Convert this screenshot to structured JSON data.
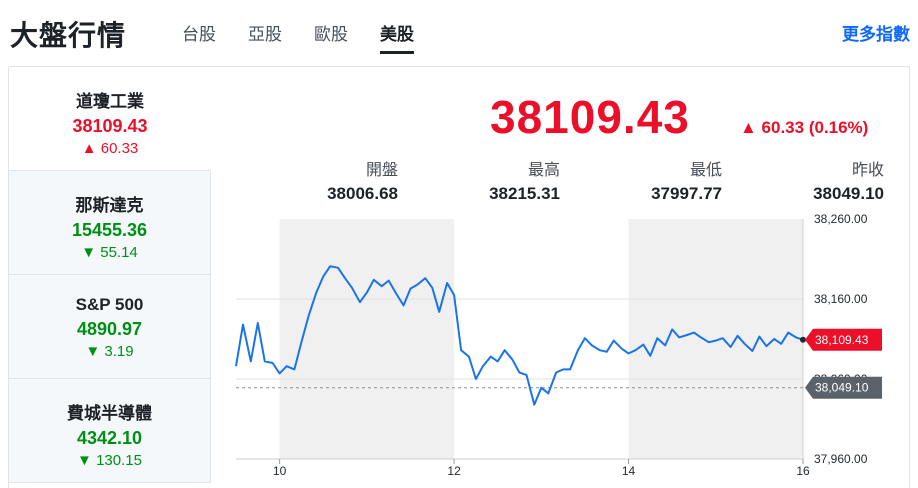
{
  "header": {
    "title": "大盤行情",
    "tabs": [
      {
        "label": "台股",
        "active": false
      },
      {
        "label": "亞股",
        "active": false
      },
      {
        "label": "歐股",
        "active": false
      },
      {
        "label": "美股",
        "active": true
      }
    ],
    "more_link": "更多指數"
  },
  "indices": [
    {
      "name": "道瓊工業",
      "price": "38109.43",
      "change": "60.33",
      "direction": "up"
    },
    {
      "name": "那斯達克",
      "price": "15455.36",
      "change": "55.14",
      "direction": "down"
    },
    {
      "name": "S&P 500",
      "price": "4890.97",
      "change": "3.19",
      "direction": "down"
    },
    {
      "name": "費城半導體",
      "price": "4342.10",
      "change": "130.15",
      "direction": "down"
    }
  ],
  "summary": {
    "price": "38109.43",
    "change": "▲ 60.33 (0.16%)",
    "stats": [
      {
        "label": "開盤",
        "value": "38006.68"
      },
      {
        "label": "最高",
        "value": "38215.31"
      },
      {
        "label": "最低",
        "value": "37997.77"
      },
      {
        "label": "昨收",
        "value": "38049.10"
      }
    ]
  },
  "colors": {
    "up": "#eb0f29",
    "down": "#008f15",
    "line": "#1a73e8",
    "shade": "#f0f0f0"
  },
  "chart_data": {
    "type": "line",
    "series": [
      {
        "x": [
          9.5,
          9.58,
          9.67,
          9.75,
          9.83,
          9.92,
          10.0,
          10.08,
          10.17,
          10.25,
          10.33,
          10.42,
          10.5,
          10.58,
          10.67,
          10.75,
          10.83,
          10.92,
          11.0,
          11.08,
          11.17,
          11.25,
          11.33,
          11.42,
          11.5,
          11.58,
          11.67,
          11.75,
          11.83,
          11.92,
          12.0,
          12.08,
          12.17,
          12.25,
          12.33,
          12.42,
          12.5,
          12.58,
          12.67,
          12.75,
          12.83,
          12.92,
          13.0,
          13.08,
          13.17,
          13.25,
          13.33,
          13.42,
          13.5,
          13.58,
          13.67,
          13.75,
          13.83,
          13.92,
          14.0,
          14.08,
          14.17,
          14.25,
          14.33,
          14.42,
          14.5,
          14.58,
          14.67,
          14.75,
          14.83,
          14.92,
          15.0,
          15.08,
          15.17,
          15.25,
          15.33,
          15.42,
          15.5,
          15.58,
          15.67,
          15.75,
          15.83,
          15.92,
          16.0
        ],
        "values": [
          38076,
          38128,
          38082,
          38130,
          38082,
          38080,
          38067,
          38076,
          38072,
          38106,
          38138,
          38168,
          38188,
          38201,
          38199,
          38186,
          38174,
          38156,
          38168,
          38184,
          38176,
          38183,
          38168,
          38152,
          38173,
          38178,
          38186,
          38174,
          38144,
          38180,
          38165,
          38096,
          38088,
          38060,
          38076,
          38088,
          38082,
          38096,
          38084,
          38068,
          38065,
          38028,
          38049,
          38042,
          38068,
          38072,
          38072,
          38096,
          38111,
          38102,
          38096,
          38094,
          38108,
          38098,
          38092,
          38096,
          38103,
          38089,
          38111,
          38102,
          38122,
          38112,
          38115,
          38118,
          38112,
          38106,
          38108,
          38111,
          38100,
          38114,
          38104,
          38095,
          38113,
          38101,
          38110,
          38104,
          38118,
          38112,
          38109
        ]
      }
    ],
    "x_ticks": [
      "10",
      "12",
      "14",
      "16"
    ],
    "y_ticks": [
      "38,260.00",
      "38,160.00",
      "38,060.00",
      "37,960.00"
    ],
    "ylim": [
      37960,
      38260
    ],
    "xlim": [
      9.5,
      16.0
    ],
    "reference_line": {
      "value": 38049.1,
      "label": "38,049.10"
    },
    "last_value_label": "38,109.43",
    "shaded_bands": [
      [
        10.0,
        12.0
      ],
      [
        14.0,
        16.0
      ]
    ]
  }
}
